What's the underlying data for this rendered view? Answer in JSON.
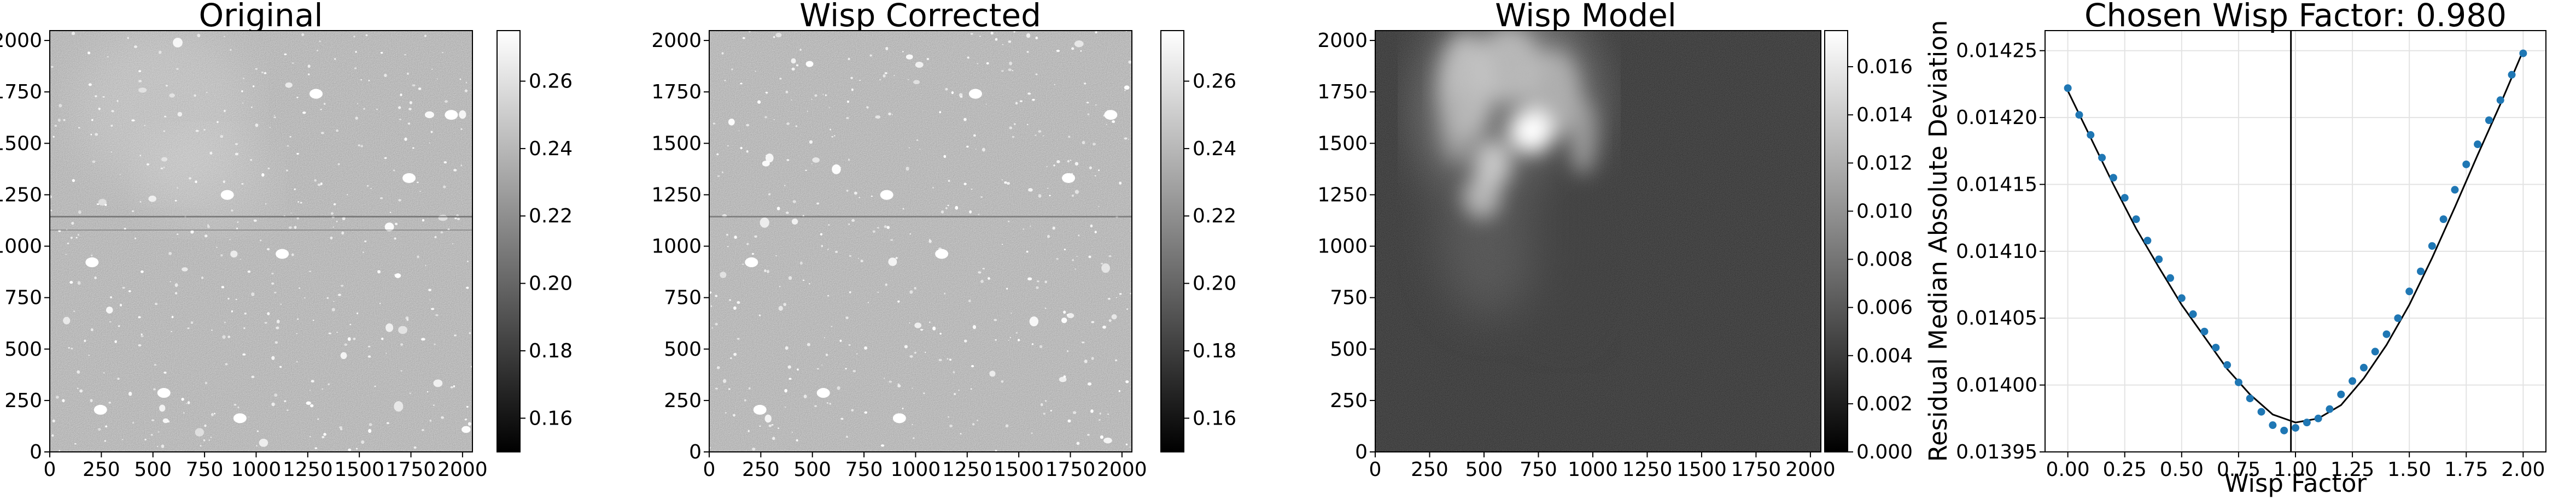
{
  "chart_data": [
    {
      "type": "heatmap",
      "title": "Original",
      "image_type": "grayscale-astronomical-image",
      "colormap": "gray",
      "xlim": [
        0,
        2048
      ],
      "ylim": [
        0,
        2048
      ],
      "x_ticks": [
        0,
        250,
        500,
        750,
        1000,
        1250,
        1500,
        1750,
        2000
      ],
      "y_ticks": [
        0,
        250,
        500,
        750,
        1000,
        1250,
        1500,
        1750,
        2000
      ],
      "colorbar": {
        "range": [
          0.15,
          0.275
        ],
        "ticks": [
          0.16,
          0.18,
          0.2,
          0.22,
          0.24,
          0.26
        ],
        "tick_labels": [
          "0.16",
          "0.18",
          "0.20",
          "0.22",
          "0.24",
          "0.26"
        ]
      }
    },
    {
      "type": "heatmap",
      "title": "Wisp Corrected",
      "image_type": "grayscale-astronomical-image",
      "colormap": "gray",
      "xlim": [
        0,
        2048
      ],
      "ylim": [
        0,
        2048
      ],
      "x_ticks": [
        0,
        250,
        500,
        750,
        1000,
        1250,
        1500,
        1750,
        2000
      ],
      "y_ticks": [
        0,
        250,
        500,
        750,
        1000,
        1250,
        1500,
        1750,
        2000
      ],
      "colorbar": {
        "range": [
          0.15,
          0.275
        ],
        "ticks": [
          0.16,
          0.18,
          0.2,
          0.22,
          0.24,
          0.26
        ],
        "tick_labels": [
          "0.16",
          "0.18",
          "0.20",
          "0.22",
          "0.24",
          "0.26"
        ]
      }
    },
    {
      "type": "heatmap",
      "title": "Wisp Model",
      "image_type": "grayscale-wisp-model",
      "colormap": "gray",
      "xlim": [
        0,
        2048
      ],
      "ylim": [
        0,
        2048
      ],
      "x_ticks": [
        0,
        250,
        500,
        750,
        1000,
        1250,
        1500,
        1750,
        2000
      ],
      "y_ticks": [
        0,
        250,
        500,
        750,
        1000,
        1250,
        1500,
        1750,
        2000
      ],
      "colorbar": {
        "range": [
          0,
          0.0175
        ],
        "ticks": [
          0,
          0.002,
          0.004,
          0.006,
          0.008,
          0.01,
          0.012,
          0.014,
          0.016
        ],
        "tick_labels": [
          "0.000",
          "0.002",
          "0.004",
          "0.006",
          "0.008",
          "0.010",
          "0.012",
          "0.014",
          "0.016"
        ]
      }
    },
    {
      "type": "scatter",
      "title": "Chosen Wisp Factor: 0.980",
      "xlabel": "Wisp Factor",
      "ylabel": "Residual Median Absolute Deviation",
      "xlim": [
        -0.1,
        2.1
      ],
      "ylim": [
        0.01395,
        0.014265
      ],
      "x_ticks": [
        0,
        0.25,
        0.5,
        0.75,
        1,
        1.25,
        1.5,
        1.75,
        2
      ],
      "x_tick_labels": [
        "0.00",
        "0.25",
        "0.50",
        "0.75",
        "1.00",
        "1.25",
        "1.50",
        "1.75",
        "2.00"
      ],
      "y_ticks": [
        0.01395,
        0.014,
        0.01405,
        0.0141,
        0.01415,
        0.0142,
        0.01425
      ],
      "y_tick_labels": [
        "0.01395",
        "0.01400",
        "0.01405",
        "0.01410",
        "0.01415",
        "0.01420",
        "0.01425"
      ],
      "grid": true,
      "chosen_factor": 0.98,
      "series": [
        {
          "kind": "points",
          "color": "#1f77b4",
          "x": [
            0,
            0.05,
            0.1,
            0.15,
            0.2,
            0.25,
            0.3,
            0.35,
            0.4,
            0.45,
            0.5,
            0.55,
            0.6,
            0.65,
            0.7,
            0.75,
            0.8,
            0.85,
            0.9,
            0.95,
            1.0,
            1.05,
            1.1,
            1.15,
            1.2,
            1.25,
            1.3,
            1.35,
            1.4,
            1.45,
            1.5,
            1.55,
            1.6,
            1.65,
            1.7,
            1.75,
            1.8,
            1.85,
            1.9,
            1.95,
            2.0
          ],
          "y": [
            0.014222,
            0.014202,
            0.014187,
            0.01417,
            0.014155,
            0.01414,
            0.014124,
            0.014108,
            0.014094,
            0.01408,
            0.014065,
            0.014053,
            0.01404,
            0.014028,
            0.014015,
            0.014002,
            0.01399,
            0.01398,
            0.01397,
            0.013966,
            0.013968,
            0.013972,
            0.013975,
            0.013982,
            0.013993,
            0.014003,
            0.014013,
            0.014025,
            0.014038,
            0.01405,
            0.01407,
            0.014085,
            0.014104,
            0.014124,
            0.014146,
            0.014165,
            0.01418,
            0.014198,
            0.014213,
            0.014232,
            0.014248
          ]
        },
        {
          "kind": "fit-line",
          "color": "#000000",
          "x": [
            0,
            0.1,
            0.2,
            0.3,
            0.4,
            0.5,
            0.6,
            0.7,
            0.8,
            0.9,
            1.0,
            1.1,
            1.2,
            1.3,
            1.4,
            1.5,
            1.6,
            1.7,
            1.8,
            1.9,
            2.0
          ],
          "y": [
            0.01422,
            0.014185,
            0.01415,
            0.014117,
            0.014088,
            0.01406,
            0.014036,
            0.014012,
            0.013993,
            0.013978,
            0.013972,
            0.013975,
            0.013985,
            0.014005,
            0.01403,
            0.01406,
            0.014095,
            0.014133,
            0.014172,
            0.01421,
            0.01425
          ]
        }
      ]
    }
  ]
}
